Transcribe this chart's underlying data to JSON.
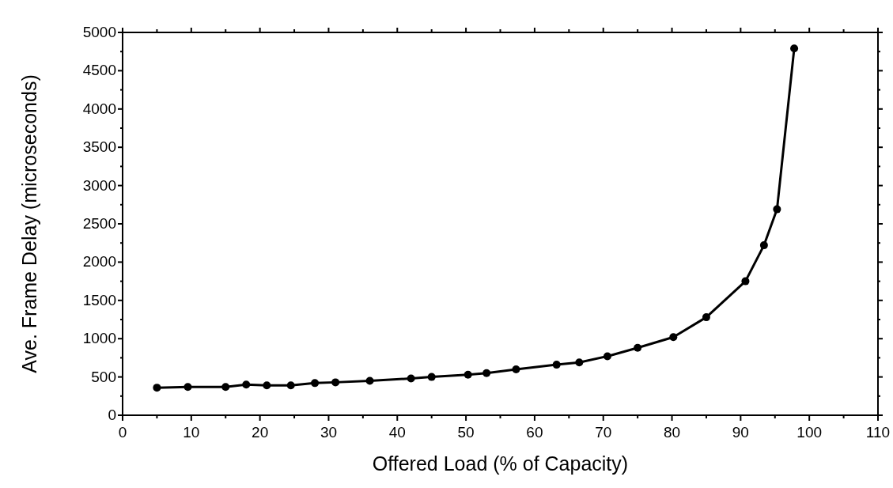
{
  "chart_data": {
    "type": "line",
    "xlabel": "Offered Load (% of Capacity)",
    "ylabel": "Ave. Frame Delay (microseconds)",
    "x": [
      5,
      9.5,
      15,
      18,
      21,
      24.5,
      28,
      31,
      36,
      42,
      45,
      50.3,
      53,
      57.3,
      63.2,
      66.5,
      70.6,
      75,
      80.2,
      85,
      90.7,
      93.4,
      95.3,
      97.8
    ],
    "series": [
      {
        "color": "#000000",
        "values": [
          360,
          370,
          370,
          400,
          390,
          390,
          420,
          430,
          450,
          480,
          500,
          530,
          550,
          600,
          660,
          690,
          770,
          880,
          1020,
          1280,
          1750,
          2220,
          2690,
          4790
        ]
      }
    ],
    "xlim": [
      0,
      110
    ],
    "xticks": [
      0,
      10,
      20,
      30,
      40,
      50,
      60,
      70,
      80,
      90,
      100,
      110
    ],
    "ylim": [
      0,
      5000
    ],
    "yticks": [
      0,
      500,
      1000,
      1500,
      2000,
      2500,
      3000,
      3500,
      4000,
      4500,
      5000
    ],
    "grid": false,
    "marker": "circle",
    "line_style": "solid"
  }
}
